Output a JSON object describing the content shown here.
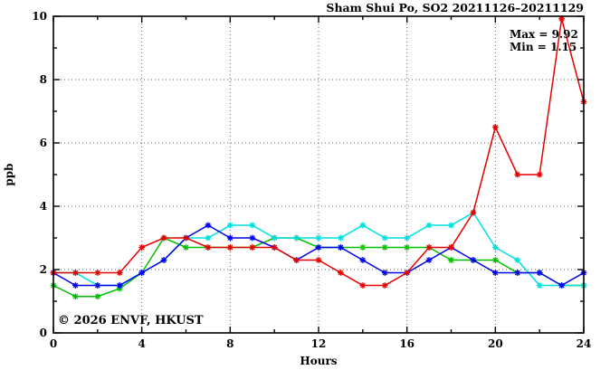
{
  "header": {
    "title": "Sham Shui Po, SO2 20211126–20211129"
  },
  "annotations": {
    "max_label": "Max = 9.92",
    "min_label": "Min = 1.15"
  },
  "watermark": "© 2026 ENVF, HKUST",
  "chart_data": {
    "type": "line",
    "title": "Sham Shui Po, SO2 20211126–20211129",
    "xlabel": "Hours",
    "ylabel": "ppb",
    "xlim": [
      0,
      24
    ],
    "ylim": [
      0,
      10
    ],
    "x_major_ticks": [
      0,
      4,
      8,
      12,
      16,
      20,
      24
    ],
    "x_minor_ticks": [
      2,
      6,
      10,
      14,
      18,
      22
    ],
    "y_major_ticks": [
      0,
      2,
      4,
      6,
      8,
      10
    ],
    "y_minor_ticks": [
      1,
      3,
      5,
      7,
      9
    ],
    "grid": "dotted-at-major-ticks",
    "legend_position": "none",
    "marker": "asterisk",
    "stat_max": 9.92,
    "stat_min": 1.15,
    "x": [
      0,
      1,
      2,
      3,
      4,
      5,
      6,
      7,
      8,
      9,
      10,
      11,
      12,
      13,
      14,
      15,
      16,
      17,
      18,
      19,
      20,
      21,
      22,
      23,
      24
    ],
    "series": [
      {
        "name": "series-green",
        "color": "#00c000",
        "values": [
          1.5,
          1.15,
          1.15,
          1.4,
          1.9,
          3.0,
          2.7,
          2.7,
          2.7,
          2.7,
          3.0,
          3.0,
          2.7,
          2.7,
          2.7,
          2.7,
          2.7,
          2.7,
          2.3,
          2.3,
          2.3,
          1.9,
          1.9,
          1.5,
          1.5
        ]
      },
      {
        "name": "series-cyan",
        "color": "#00e0e0",
        "values": [
          1.9,
          1.9,
          1.5,
          1.5,
          1.9,
          2.3,
          3.0,
          3.0,
          3.4,
          3.4,
          3.0,
          3.0,
          3.0,
          3.0,
          3.4,
          3.0,
          3.0,
          3.4,
          3.4,
          3.8,
          2.7,
          2.3,
          1.5,
          1.5,
          1.5
        ]
      },
      {
        "name": "series-blue",
        "color": "#0000ee",
        "values": [
          1.9,
          1.5,
          1.5,
          1.5,
          1.9,
          2.3,
          3.0,
          3.4,
          3.0,
          3.0,
          2.7,
          2.3,
          2.7,
          2.7,
          2.3,
          1.9,
          1.9,
          2.3,
          2.7,
          2.3,
          1.9,
          1.9,
          1.9,
          1.5,
          1.9
        ]
      },
      {
        "name": "series-red",
        "color": "#e60000",
        "values": [
          1.9,
          1.9,
          1.9,
          1.9,
          2.7,
          3.0,
          3.0,
          2.7,
          2.7,
          2.7,
          2.7,
          2.3,
          2.3,
          1.9,
          1.5,
          1.5,
          1.9,
          2.7,
          2.7,
          3.8,
          6.5,
          5.0,
          5.0,
          9.92,
          7.3
        ]
      }
    ]
  },
  "colors": {
    "frame": "#000000",
    "grid": "#606060",
    "watermark": "#dedede",
    "background": "#ffffff"
  }
}
